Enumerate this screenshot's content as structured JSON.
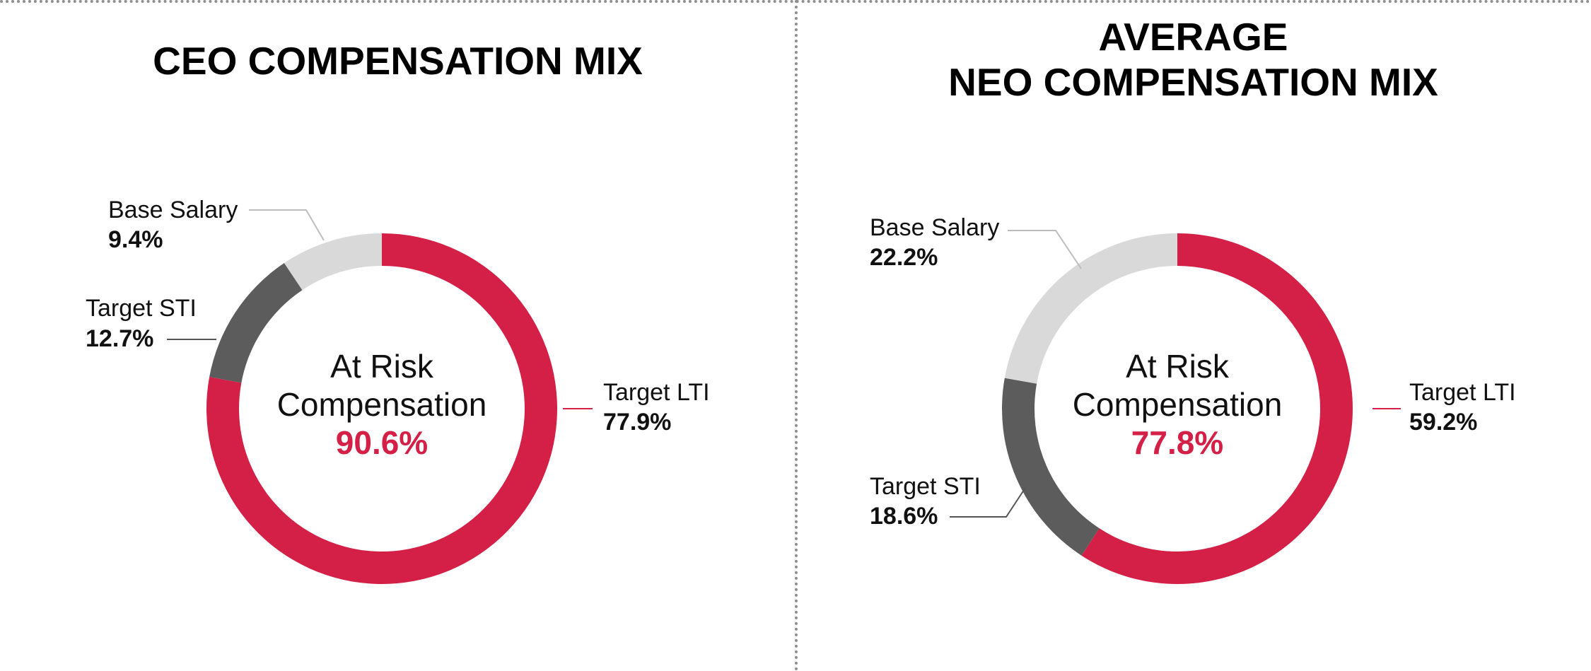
{
  "chart_data": [
    {
      "type": "pie",
      "title": [
        "CEO COMPENSATION MIX"
      ],
      "slices": [
        {
          "label": "Target LTI",
          "value": 77.9,
          "value_label": "77.9%",
          "color": "#d41f46"
        },
        {
          "label": "Target STI",
          "value": 12.7,
          "value_label": "12.7%",
          "color": "#5b5c5b"
        },
        {
          "label": "Base Salary",
          "value": 9.4,
          "value_label": "9.4%",
          "color": "#d9d9d9"
        }
      ],
      "center": {
        "line1": "At Risk",
        "line2": "Compensation",
        "value": "90.6%"
      }
    },
    {
      "type": "pie",
      "title": [
        "AVERAGE",
        "NEO COMPENSATION MIX"
      ],
      "slices": [
        {
          "label": "Target LTI",
          "value": 59.2,
          "value_label": "59.2%",
          "color": "#d41f46"
        },
        {
          "label": "Target STI",
          "value": 18.6,
          "value_label": "18.6%",
          "color": "#5b5c5b"
        },
        {
          "label": "Base Salary",
          "value": 22.2,
          "value_label": "22.2%",
          "color": "#d9d9d9"
        }
      ],
      "center": {
        "line1": "At Risk",
        "line2": "Compensation",
        "value": "77.8%"
      }
    }
  ],
  "colors": {
    "accent": "#d41f46",
    "leader_grey": "#bdbdbd",
    "leader_dark": "#555555"
  }
}
